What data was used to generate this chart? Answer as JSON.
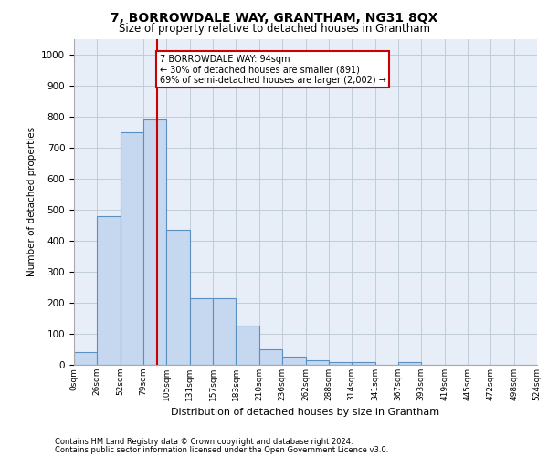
{
  "title": "7, BORROWDALE WAY, GRANTHAM, NG31 8QX",
  "subtitle": "Size of property relative to detached houses in Grantham",
  "xlabel": "Distribution of detached houses by size in Grantham",
  "ylabel": "Number of detached properties",
  "bin_labels": [
    "0sqm",
    "26sqm",
    "52sqm",
    "79sqm",
    "105sqm",
    "131sqm",
    "157sqm",
    "183sqm",
    "210sqm",
    "236sqm",
    "262sqm",
    "288sqm",
    "314sqm",
    "341sqm",
    "367sqm",
    "393sqm",
    "419sqm",
    "445sqm",
    "472sqm",
    "498sqm",
    "524sqm"
  ],
  "bar_vals": [
    40,
    480,
    750,
    790,
    435,
    215,
    215,
    127,
    50,
    27,
    15,
    10,
    8,
    0,
    8,
    0,
    0,
    0,
    0,
    0
  ],
  "bar_color": "#c5d8f0",
  "bar_edge_color": "#5a8fc2",
  "vline_color": "#cc0000",
  "annotation_text": "7 BORROWDALE WAY: 94sqm\n← 30% of detached houses are smaller (891)\n69% of semi-detached houses are larger (2,002) →",
  "annotation_box_color": "#ffffff",
  "annotation_box_edge": "#cc0000",
  "ylim": [
    0,
    1050
  ],
  "yticks": [
    0,
    100,
    200,
    300,
    400,
    500,
    600,
    700,
    800,
    900,
    1000
  ],
  "grid_color": "#c0ccd8",
  "background_color": "#e8eef8",
  "footer_line1": "Contains HM Land Registry data © Crown copyright and database right 2024.",
  "footer_line2": "Contains public sector information licensed under the Open Government Licence v3.0."
}
